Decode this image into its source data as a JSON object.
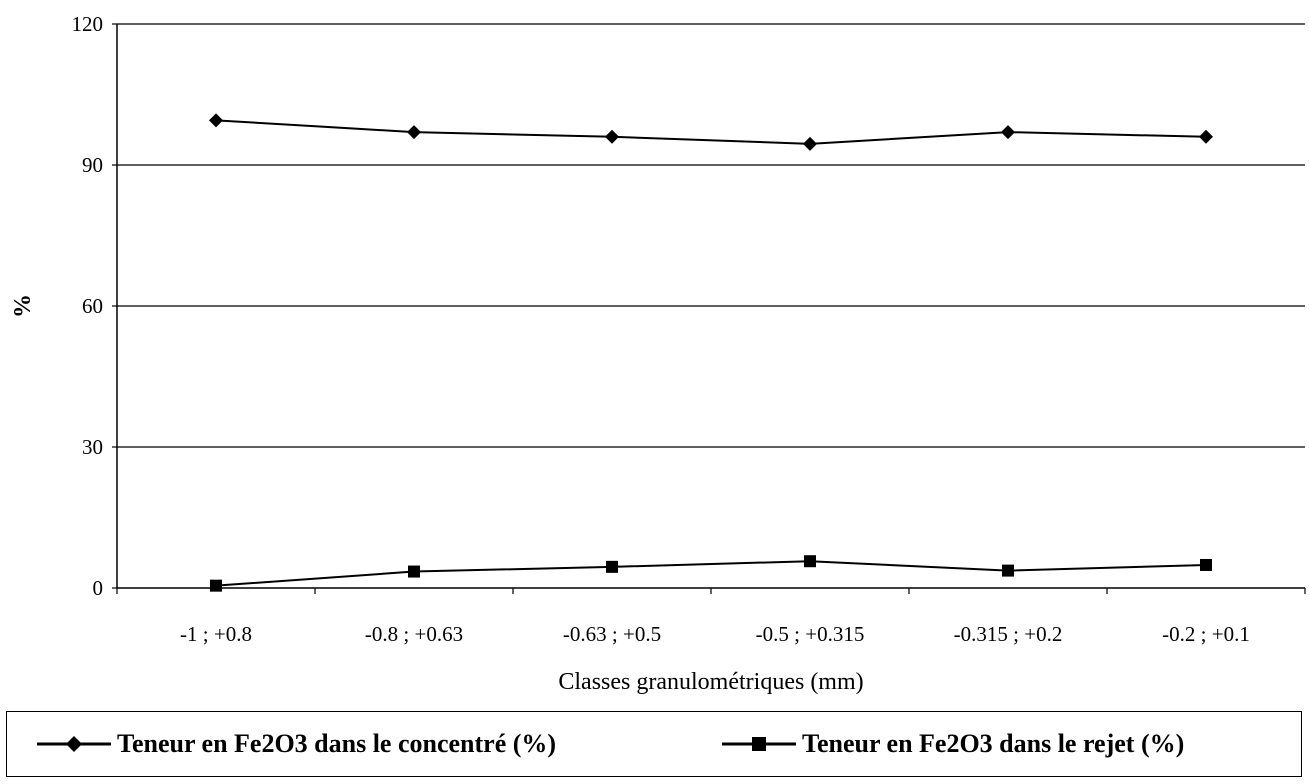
{
  "chart_data": {
    "type": "line",
    "title": "",
    "xlabel": "Classes granulométriques (mm)",
    "ylabel": "%",
    "categories": [
      "-1 ; +0.8",
      "-0.8 ; +0.63",
      "-0.63 ; +0.5",
      "-0.5 ; +0.315",
      "-0.315 ; +0.2",
      "-0.2 ; +0.1"
    ],
    "ylim": [
      0,
      120
    ],
    "yticks": [
      "0",
      "30",
      "60",
      "90",
      "120"
    ],
    "grid": "horizontal",
    "legend_position": "bottom",
    "series": [
      {
        "name": "Teneur en Fe2O3 dans le concentré (%)",
        "marker": "diamond",
        "color": "#000000",
        "values": [
          99.5,
          97,
          96,
          94.5,
          97,
          96
        ]
      },
      {
        "name": "Teneur en Fe2O3 dans le rejet (%)",
        "marker": "square",
        "color": "#000000",
        "values": [
          0.5,
          3.5,
          4.5,
          5.7,
          3.7,
          4.9
        ]
      }
    ]
  }
}
